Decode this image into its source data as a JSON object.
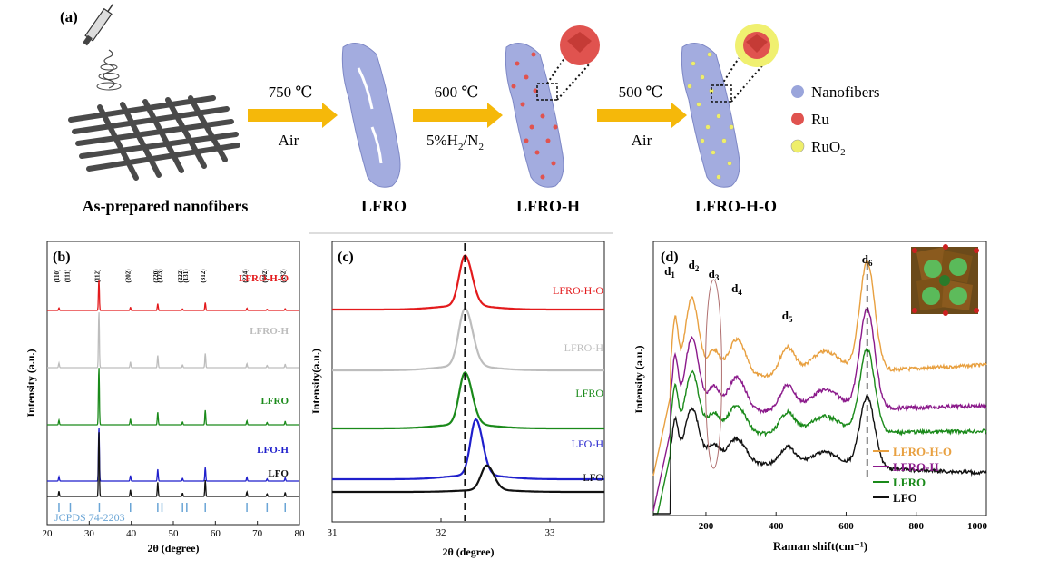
{
  "panel_a": {
    "label": "(a)",
    "step1_temp": "750 ℃",
    "step1_gas": "Air",
    "step2_temp": "600 ℃",
    "step2_gas_a": "5%H",
    "step2_gas_sub1": "2",
    "step2_gas_b": "/N",
    "step2_gas_sub2": "2",
    "step3_temp": "500 ℃",
    "step3_gas": "Air",
    "captions": [
      "As-prepared nanofibers",
      "LFRO",
      "LFRO-H",
      "LFRO-H-O"
    ],
    "legend": [
      {
        "label": "Nanofibers",
        "color": "#9aa5db"
      },
      {
        "label": "Ru",
        "color": "#e0534f"
      },
      {
        "label": "RuO",
        "sub": "2",
        "color": "#eeee6a"
      }
    ]
  },
  "chart_data": [
    {
      "type": "line",
      "panel": "(b)",
      "xlabel": "2θ (degree)",
      "ylabel": "Intensity (a.u.)",
      "xlim": [
        20,
        80
      ],
      "xticks": [
        20,
        30,
        40,
        50,
        60,
        70,
        80
      ],
      "reference": "JCPDS 74-2203",
      "reference_peaks": [
        22.8,
        25.5,
        32.4,
        39.8,
        46.3,
        47.3,
        52.2,
        53.2,
        57.6,
        67.5,
        72.3,
        76.6
      ],
      "peak_labels": [
        {
          "x": 22.8,
          "label": "(110)"
        },
        {
          "x": 25.3,
          "label": "(111)"
        },
        {
          "x": 32.4,
          "label": "(112)"
        },
        {
          "x": 39.8,
          "label": "(202)"
        },
        {
          "x": 46.3,
          "label": "(220)"
        },
        {
          "x": 47.3,
          "label": "(023)"
        },
        {
          "x": 52.2,
          "label": "(222)"
        },
        {
          "x": 53.4,
          "label": "(131)"
        },
        {
          "x": 57.6,
          "label": "(312)"
        },
        {
          "x": 67.6,
          "label": "(224)"
        },
        {
          "x": 72.2,
          "label": "(402)"
        },
        {
          "x": 76.7,
          "label": "(332)"
        }
      ],
      "series": [
        {
          "name": "LFRO-H-O",
          "color": "#e31a1c"
        },
        {
          "name": "LFRO-H",
          "color": "#bdbdbd"
        },
        {
          "name": "LFRO",
          "color": "#1a8a1a"
        },
        {
          "name": "LFO-H",
          "color": "#1f1fcc"
        },
        {
          "name": "LFO",
          "color": "#111111"
        }
      ],
      "peaks": [
        {
          "x": 22.8,
          "h": 0.08
        },
        {
          "x": 32.3,
          "h": 1.0
        },
        {
          "x": 39.8,
          "h": 0.1
        },
        {
          "x": 46.3,
          "h": 0.22
        },
        {
          "x": 52.2,
          "h": 0.05
        },
        {
          "x": 57.6,
          "h": 0.25
        },
        {
          "x": 67.5,
          "h": 0.07
        },
        {
          "x": 72.3,
          "h": 0.04
        },
        {
          "x": 76.6,
          "h": 0.06
        }
      ]
    },
    {
      "type": "line",
      "panel": "(c)",
      "xlabel": "2θ (degree)",
      "ylabel": "Intensity(a.u.)",
      "xlim": [
        31,
        33.5
      ],
      "xticks": [
        31,
        32,
        33
      ],
      "reference_line_x": 32.22,
      "series": [
        {
          "name": "LFRO-H-O",
          "color": "#e31a1c",
          "peak": 32.22
        },
        {
          "name": "LFRO-H",
          "color": "#bdbdbd",
          "peak": 32.22
        },
        {
          "name": "LFRO",
          "color": "#1a8a1a",
          "peak": 32.22
        },
        {
          "name": "LFO-H",
          "color": "#1f1fcc",
          "peak": 32.32
        },
        {
          "name": "LFO",
          "color": "#111111",
          "peak": 32.42
        }
      ]
    },
    {
      "type": "line",
      "panel": "(d)",
      "xlabel": "Raman shift(cm⁻¹)",
      "ylabel": "Intensity (a.u.)",
      "xlim": [
        50,
        1000
      ],
      "xticks": [
        200,
        400,
        600,
        800,
        1000
      ],
      "reference_line_x": 660,
      "band_labels": [
        {
          "x": 112,
          "label": "d",
          "sub": "1"
        },
        {
          "x": 160,
          "label": "d",
          "sub": "2"
        },
        {
          "x": 222,
          "label": "d",
          "sub": "3"
        },
        {
          "x": 288,
          "label": "d",
          "sub": "4"
        },
        {
          "x": 432,
          "label": "d",
          "sub": "5"
        },
        {
          "x": 660,
          "label": "d",
          "sub": "6"
        }
      ],
      "legend_position": "bottom-right",
      "series": [
        {
          "name": "LFRO-H-O",
          "color": "#e8a040"
        },
        {
          "name": "LFRO-H",
          "color": "#8b1a8b"
        },
        {
          "name": "LFRO",
          "color": "#1a8a1a"
        },
        {
          "name": "LFO",
          "color": "#111111"
        }
      ]
    }
  ]
}
